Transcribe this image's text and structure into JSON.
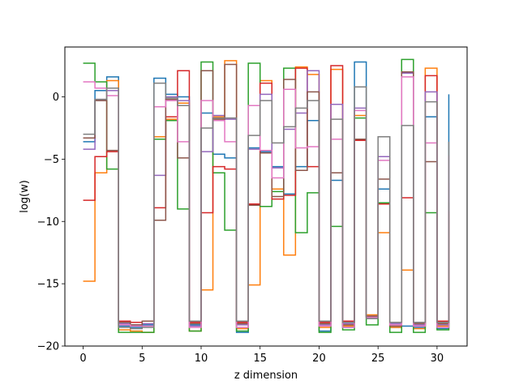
{
  "chart_data": {
    "type": "line",
    "drawstyle": "steps-post",
    "title": "",
    "xlabel": "z dimension",
    "ylabel": "log(w)",
    "xlim": [
      -1.55,
      32.55
    ],
    "ylim": [
      -20,
      4
    ],
    "x_ticks": [
      0,
      5,
      10,
      15,
      20,
      25,
      30
    ],
    "y_ticks": [
      -20,
      -15,
      -10,
      -5,
      0
    ],
    "y_tick_labels": [
      "−20",
      "−15",
      "−10",
      "−5",
      "0"
    ],
    "grid": false,
    "legend": "none",
    "x": [
      0,
      1,
      2,
      3,
      4,
      5,
      6,
      7,
      8,
      9,
      10,
      11,
      12,
      13,
      14,
      15,
      16,
      17,
      18,
      19,
      20,
      21,
      22,
      23,
      24,
      25,
      26,
      27,
      28,
      29,
      30,
      31
    ],
    "series": [
      {
        "color": "#1f77b4",
        "values": [
          -3.6,
          0.5,
          1.6,
          -18.4,
          -18.5,
          -18.3,
          1.5,
          0.2,
          0.0,
          -18.3,
          -1.3,
          -4.6,
          -4.9,
          -18.9,
          -4.1,
          -4.4,
          -5.6,
          -7.8,
          -5.6,
          -1.9,
          -18.8,
          -6.7,
          -18.5,
          2.8,
          -17.7,
          -7.4,
          -18.5,
          -18.4,
          -18.5,
          -1.6,
          -18.6,
          0.2
        ]
      },
      {
        "color": "#ff7f0e",
        "values": [
          -14.8,
          -6.1,
          1.3,
          -18.7,
          -18.8,
          -18.9,
          -3.2,
          -1.8,
          -0.5,
          -18.8,
          -15.5,
          -1.6,
          2.9,
          -18.6,
          -15.1,
          1.3,
          -7.4,
          -12.7,
          2.4,
          1.8,
          -18.5,
          2.2,
          -18.4,
          -1.5,
          -17.5,
          -10.9,
          -18.5,
          -13.9,
          -18.6,
          2.3,
          -18.4,
          -9.4
        ]
      },
      {
        "color": "#2ca02c",
        "values": [
          2.7,
          1.2,
          -5.8,
          -18.9,
          -18.9,
          -18.9,
          -3.4,
          -1.9,
          -9.0,
          -18.8,
          2.8,
          -6.1,
          -10.7,
          -18.8,
          2.7,
          -8.8,
          -7.6,
          2.3,
          -10.9,
          -7.7,
          -18.9,
          -10.4,
          -18.7,
          -1.7,
          -18.3,
          -8.5,
          -18.9,
          3.0,
          -18.9,
          -9.3,
          -18.7,
          -8.5
        ]
      },
      {
        "color": "#d62728",
        "values": [
          -8.3,
          -4.8,
          -4.4,
          -18.0,
          -18.1,
          -18.0,
          -8.9,
          -1.6,
          2.1,
          -18.1,
          -9.3,
          -5.6,
          -5.8,
          -18.1,
          -8.6,
          1.1,
          -8.2,
          -7.9,
          2.3,
          -5.6,
          -18.1,
          2.5,
          -18.0,
          -3.5,
          -17.6,
          -8.6,
          -18.1,
          -8.1,
          -18.1,
          1.7,
          -18.0,
          -9.2
        ]
      },
      {
        "color": "#9467bd",
        "values": [
          -4.2,
          -0.2,
          0.5,
          -18.2,
          -18.3,
          -18.2,
          -6.3,
          0.0,
          -0.3,
          -18.4,
          -4.4,
          -1.5,
          -1.8,
          -18.3,
          -4.2,
          0.2,
          -5.7,
          -2.6,
          -1.3,
          2.1,
          -18.3,
          -0.6,
          -18.2,
          -0.9,
          -17.6,
          -4.8,
          -18.2,
          1.9,
          -18.3,
          0.4,
          -18.3,
          -6.9
        ]
      },
      {
        "color": "#8c564b",
        "values": [
          -3.3,
          -0.3,
          -4.3,
          -18.1,
          -18.3,
          -18.0,
          -9.9,
          -0.2,
          -4.9,
          -18.2,
          2.1,
          -1.8,
          2.6,
          -18.2,
          -8.7,
          -4.5,
          -8.0,
          1.4,
          -5.9,
          0.4,
          -18.2,
          -6.1,
          -18.3,
          -3.4,
          -17.6,
          -6.6,
          -18.4,
          2.0,
          -18.2,
          -5.2,
          -18.2,
          -9.9
        ]
      },
      {
        "color": "#e377c2",
        "values": [
          1.2,
          0.7,
          0.1,
          -18.3,
          -18.4,
          -18.4,
          -0.8,
          -0.3,
          -3.6,
          -18.5,
          -0.3,
          -1.9,
          -3.6,
          -18.5,
          -0.7,
          -4.3,
          -6.5,
          0.6,
          -4.1,
          -4.0,
          -18.4,
          -3.4,
          -18.5,
          -1.1,
          -17.7,
          -5.1,
          -18.3,
          1.6,
          -18.4,
          -3.7,
          -18.5,
          -4.7
        ]
      },
      {
        "color": "#7f7f7f",
        "values": [
          -3.0,
          -0.2,
          0.7,
          -18.5,
          -18.6,
          -18.5,
          1.1,
          -0.1,
          -0.7,
          -18.0,
          -2.5,
          -1.7,
          -1.7,
          -18.0,
          -3.1,
          -0.3,
          -3.7,
          -2.4,
          -0.9,
          -0.3,
          -18.0,
          -1.8,
          -18.1,
          0.8,
          -17.8,
          -3.2,
          -18.1,
          -2.3,
          -18.1,
          -0.4,
          -18.1,
          -3.6
        ]
      }
    ]
  }
}
